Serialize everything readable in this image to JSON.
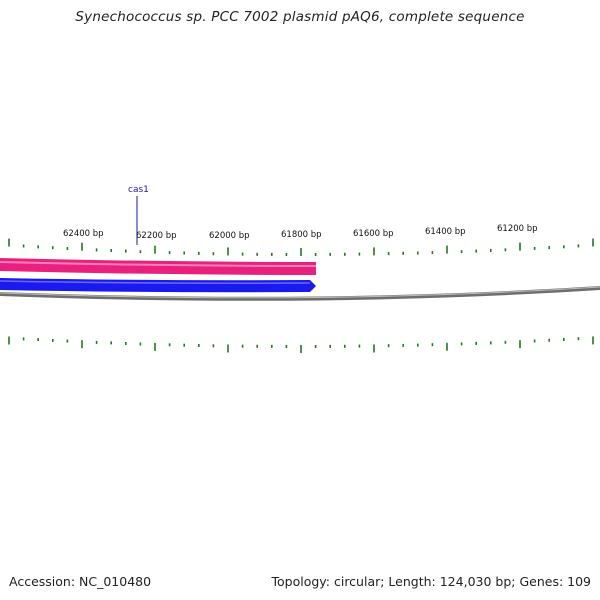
{
  "title": "Synechococcus sp. PCC 7002 plasmid pAQ6, complete sequence",
  "accession_text": "Accession: NC_010480",
  "summary_text": "Topology: circular; Length: 124,030 bp; Genes: 109",
  "tick_labels": [
    "62400 bp",
    "62200 bp",
    "62000 bp",
    "61800 bp",
    "61600 bp",
    "61400 bp",
    "61200 bp"
  ],
  "gene_label": "cas1",
  "colors": {
    "backbone": "#808080",
    "forward_feature": "#e8207e",
    "reverse_feature": "#1a1aee",
    "ticks": "#1f7a1f",
    "label_line": "#1a1aa0"
  }
}
